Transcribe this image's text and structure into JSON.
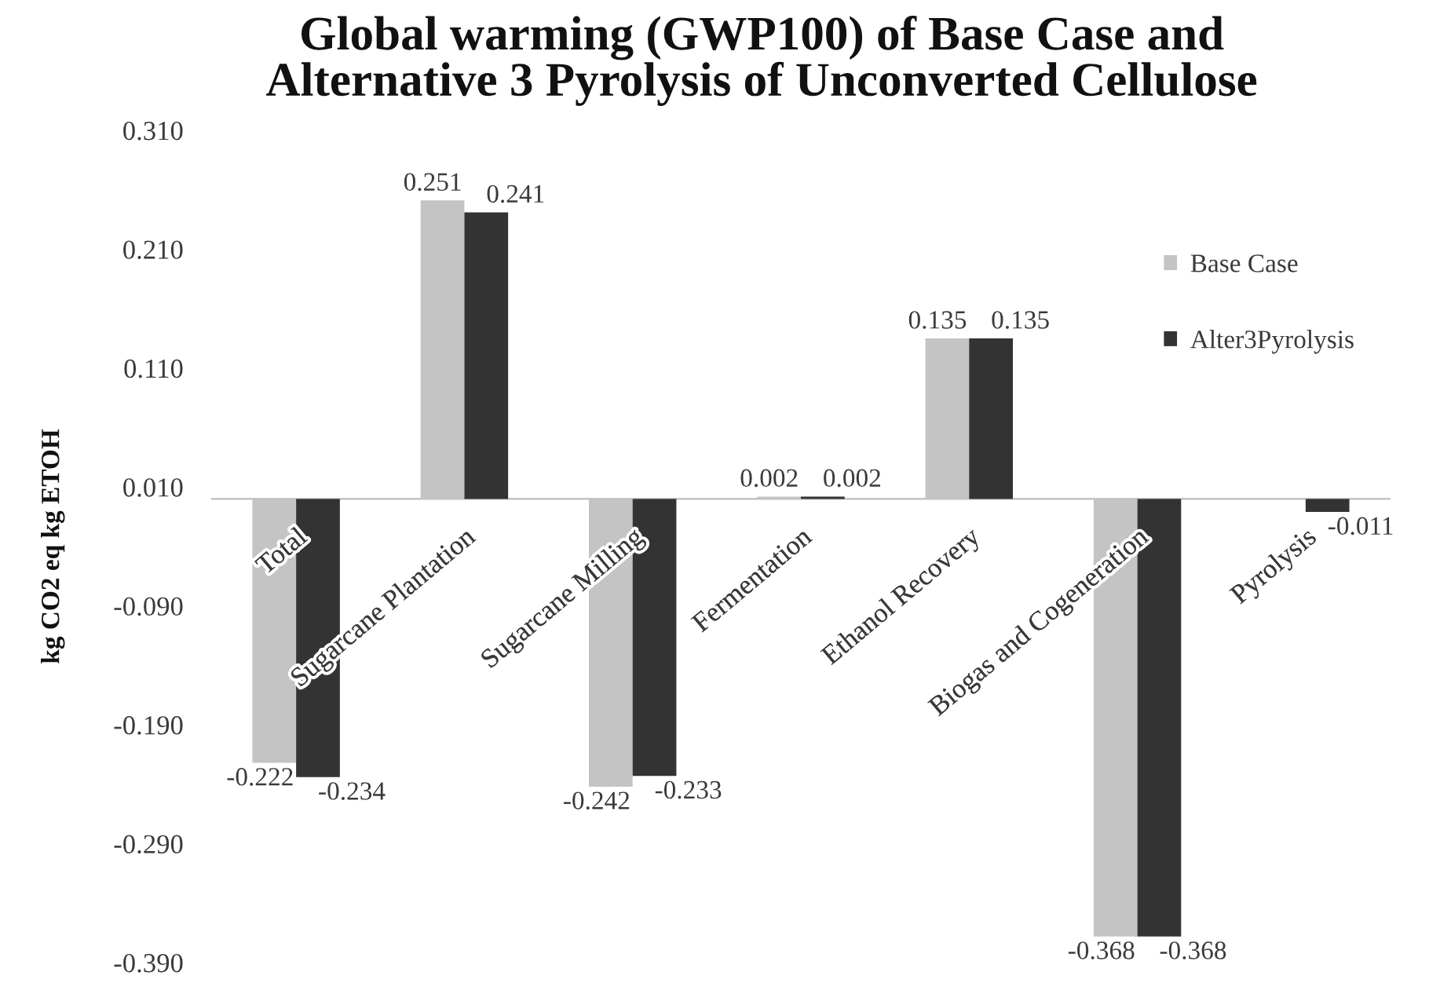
{
  "chart_data": {
    "type": "bar",
    "title": "Global warming (GWP100) of Base Case and\nAlternative 3 Pyrolysis of Unconverted Cellulose",
    "ylabel": "kg CO2 eq kg ETOH",
    "categories": [
      "Total",
      "Sugarcane Plantation",
      "Sugarcane Milling",
      "Fermentation",
      "Ethanol Recovery",
      "Biogas and Cogeneration",
      "Pyrolysis"
    ],
    "series": [
      {
        "name": "Base Case",
        "color": "#c4c4c4",
        "values": [
          -0.222,
          0.251,
          -0.242,
          0.002,
          0.135,
          -0.368,
          null
        ]
      },
      {
        "name": "Alter3Pyrolysis",
        "color": "#333333",
        "values": [
          -0.234,
          0.241,
          -0.233,
          0.002,
          0.135,
          -0.368,
          -0.011
        ]
      }
    ],
    "ylim": [
      -0.39,
      0.31
    ],
    "yticks": [
      {
        "value": -0.39,
        "label": "-0.390"
      },
      {
        "value": -0.29,
        "label": "-0.290"
      },
      {
        "value": -0.19,
        "label": "-0.190"
      },
      {
        "value": -0.09,
        "label": "-0.090"
      },
      {
        "value": 0.01,
        "label": "0.010"
      },
      {
        "value": 0.11,
        "label": "0.110"
      },
      {
        "value": 0.21,
        "label": "0.210"
      },
      {
        "value": 0.31,
        "label": "0.310"
      }
    ],
    "data_labels": true,
    "legend": "top right"
  }
}
